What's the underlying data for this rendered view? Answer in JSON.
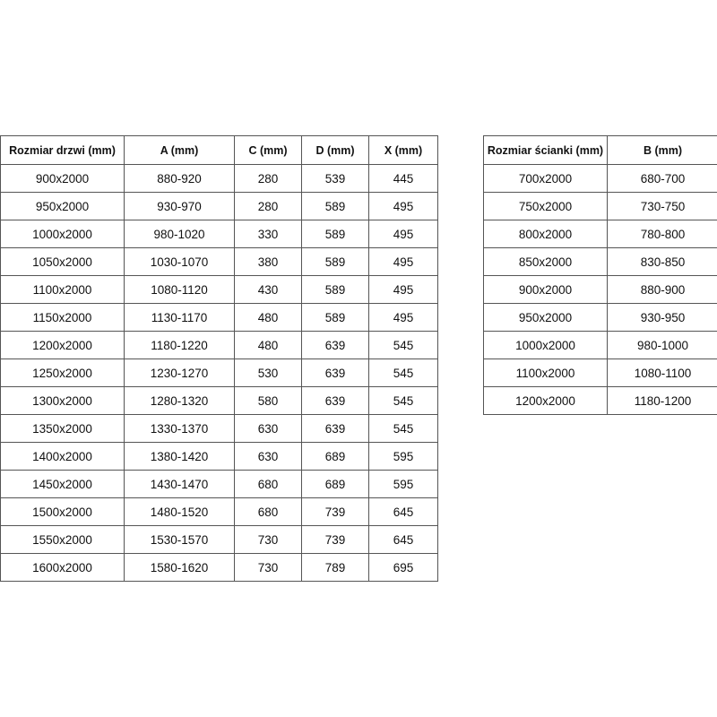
{
  "doors_table": {
    "headers": [
      "Rozmiar drzwi (mm)",
      "A (mm)",
      "C (mm)",
      "D (mm)",
      "X (mm)"
    ],
    "rows": [
      [
        "900x2000",
        "880-920",
        "280",
        "539",
        "445"
      ],
      [
        "950x2000",
        "930-970",
        "280",
        "589",
        "495"
      ],
      [
        "1000x2000",
        "980-1020",
        "330",
        "589",
        "495"
      ],
      [
        "1050x2000",
        "1030-1070",
        "380",
        "589",
        "495"
      ],
      [
        "1100x2000",
        "1080-1120",
        "430",
        "589",
        "495"
      ],
      [
        "1150x2000",
        "1130-1170",
        "480",
        "589",
        "495"
      ],
      [
        "1200x2000",
        "1180-1220",
        "480",
        "639",
        "545"
      ],
      [
        "1250x2000",
        "1230-1270",
        "530",
        "639",
        "545"
      ],
      [
        "1300x2000",
        "1280-1320",
        "580",
        "639",
        "545"
      ],
      [
        "1350x2000",
        "1330-1370",
        "630",
        "639",
        "545"
      ],
      [
        "1400x2000",
        "1380-1420",
        "630",
        "689",
        "595"
      ],
      [
        "1450x2000",
        "1430-1470",
        "680",
        "689",
        "595"
      ],
      [
        "1500x2000",
        "1480-1520",
        "680",
        "739",
        "645"
      ],
      [
        "1550x2000",
        "1530-1570",
        "730",
        "739",
        "645"
      ],
      [
        "1600x2000",
        "1580-1620",
        "730",
        "789",
        "695"
      ]
    ]
  },
  "wall_table": {
    "headers": [
      "Rozmiar ścianki (mm)",
      "B (mm)"
    ],
    "rows": [
      [
        "700x2000",
        "680-700"
      ],
      [
        "750x2000",
        "730-750"
      ],
      [
        "800x2000",
        "780-800"
      ],
      [
        "850x2000",
        "830-850"
      ],
      [
        "900x2000",
        "880-900"
      ],
      [
        "950x2000",
        "930-950"
      ],
      [
        "1000x2000",
        "980-1000"
      ],
      [
        "1100x2000",
        "1080-1100"
      ],
      [
        "1200x2000",
        "1180-1200"
      ]
    ]
  }
}
